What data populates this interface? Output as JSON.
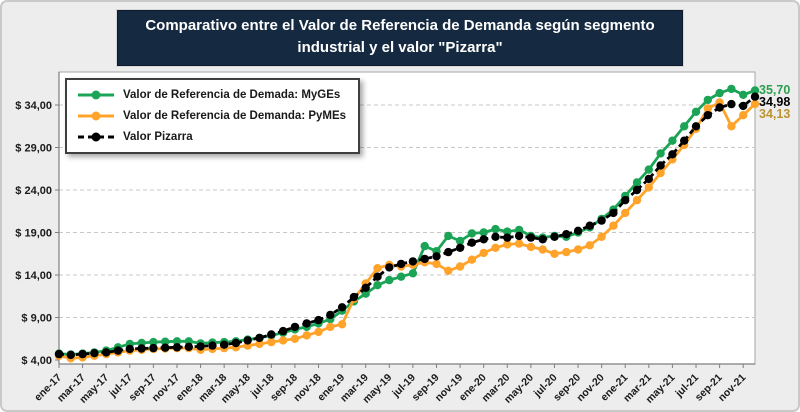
{
  "title": {
    "text": "Comparativo entre el Valor de Referencia de Demanda según segmento industrial y el valor \"Pizarra\"",
    "bg_color": "#152A40",
    "text_color": "#FFFFFF"
  },
  "chart_data": {
    "type": "line",
    "title": "Comparativo entre el Valor de Referencia de Demanda según segmento industrial y el valor \"Pizarra\"",
    "xlabel": "",
    "ylabel": "",
    "ylim": [
      4,
      38
    ],
    "grid": true,
    "legend_position": "top-left",
    "x": [
      "ene-17",
      "feb-17",
      "mar-17",
      "abr-17",
      "may-17",
      "jun-17",
      "jul-17",
      "ago-17",
      "sep-17",
      "oct-17",
      "nov-17",
      "dic-17",
      "ene-18",
      "feb-18",
      "mar-18",
      "abr-18",
      "may-18",
      "jun-18",
      "jul-18",
      "ago-18",
      "sep-18",
      "oct-18",
      "nov-18",
      "dic-18",
      "ene-19",
      "feb-19",
      "mar-19",
      "abr-19",
      "may-19",
      "jun-19",
      "jul-19",
      "ago-19",
      "sep-19",
      "oct-19",
      "nov-19",
      "dic-19",
      "ene-20",
      "feb-20",
      "mar-20",
      "abr-20",
      "may-20",
      "jun-20",
      "jul-20",
      "ago-20",
      "sep-20",
      "oct-20",
      "nov-20",
      "dic-20",
      "ene-21",
      "feb-21",
      "mar-21",
      "abr-21",
      "may-21",
      "jun-21",
      "jul-21",
      "ago-21",
      "sep-21",
      "oct-21",
      "nov-21",
      "dic-21"
    ],
    "x_tick_every": 2,
    "y_ticks": [
      {
        "v": 4,
        "label": "$ 4,00"
      },
      {
        "v": 9,
        "label": "$ 9,00"
      },
      {
        "v": 14,
        "label": "$ 14,00"
      },
      {
        "v": 19,
        "label": "$ 19,00"
      },
      {
        "v": 24,
        "label": "$ 24,00"
      },
      {
        "v": 29,
        "label": "$ 29,00"
      },
      {
        "v": 34,
        "label": "$ 34,00"
      }
    ],
    "series": [
      {
        "name": "Valor de Referencia de Demada: MyGEs",
        "color": "#1CA456",
        "dash": "solid",
        "values": [
          4.75,
          4.65,
          4.75,
          4.9,
          5.1,
          5.5,
          5.9,
          6.0,
          6.1,
          6.15,
          6.2,
          6.2,
          5.95,
          6.05,
          6.1,
          6.2,
          6.4,
          6.6,
          6.9,
          7.2,
          7.6,
          7.9,
          8.3,
          8.8,
          9.8,
          10.9,
          11.8,
          12.8,
          13.4,
          13.8,
          14.2,
          17.4,
          16.8,
          18.6,
          18.0,
          18.9,
          19.0,
          19.4,
          19.1,
          19.3,
          18.6,
          18.4,
          18.6,
          18.5,
          19.0,
          19.6,
          20.6,
          21.7,
          23.3,
          24.9,
          26.4,
          28.3,
          29.8,
          31.5,
          33.2,
          34.6,
          35.4,
          35.9,
          35.2,
          35.7
        ]
      },
      {
        "name": "Valor de Referencia de Demanda: PyMEs",
        "color": "#FFA32B",
        "dash": "solid",
        "values": [
          4.5,
          4.2,
          4.3,
          4.5,
          4.7,
          4.9,
          5.1,
          5.2,
          5.3,
          5.35,
          5.4,
          5.4,
          5.2,
          5.3,
          5.4,
          5.5,
          5.7,
          5.9,
          6.1,
          6.3,
          6.5,
          6.9,
          7.3,
          7.9,
          8.2,
          11.2,
          13.0,
          14.8,
          15.2,
          15.0,
          15.2,
          15.5,
          15.3,
          14.5,
          15.0,
          15.8,
          16.6,
          17.2,
          17.6,
          17.7,
          17.3,
          17.0,
          16.5,
          16.7,
          17.0,
          17.5,
          18.5,
          19.8,
          21.3,
          22.8,
          24.3,
          26.0,
          27.6,
          29.3,
          31.2,
          33.6,
          34.3,
          31.5,
          32.8,
          34.13
        ]
      },
      {
        "name": "Valor Pizarra",
        "color": "#000000",
        "dash": "dashed",
        "values": [
          4.7,
          4.6,
          4.7,
          4.8,
          4.9,
          5.1,
          5.3,
          5.35,
          5.4,
          5.45,
          5.5,
          5.55,
          5.6,
          5.7,
          5.8,
          6.0,
          6.3,
          6.6,
          7.0,
          7.4,
          7.9,
          8.3,
          8.7,
          9.3,
          10.2,
          11.4,
          12.5,
          13.8,
          14.9,
          15.3,
          15.6,
          15.9,
          16.2,
          16.7,
          17.2,
          17.8,
          18.2,
          18.5,
          18.4,
          18.6,
          18.4,
          18.2,
          18.5,
          18.8,
          19.2,
          19.8,
          20.4,
          21.3,
          22.8,
          24.0,
          25.3,
          26.9,
          28.2,
          29.8,
          31.5,
          32.8,
          33.7,
          34.1,
          33.9,
          34.98
        ]
      }
    ],
    "end_labels": [
      {
        "text": "35,70",
        "color": "#2E9E4F",
        "series": "MyGEs"
      },
      {
        "text": "34,98",
        "color": "#000000",
        "series": "Pizarra"
      },
      {
        "text": "34,13",
        "color": "#BD9331",
        "series": "PyMEs"
      }
    ]
  },
  "colors": {
    "page_bg": "#EDEDED",
    "plot_bg": "#FFFFFF",
    "grid": "#C8C8C8",
    "axis": "#7F7F7F",
    "tick_text": "#1A1A1A"
  }
}
